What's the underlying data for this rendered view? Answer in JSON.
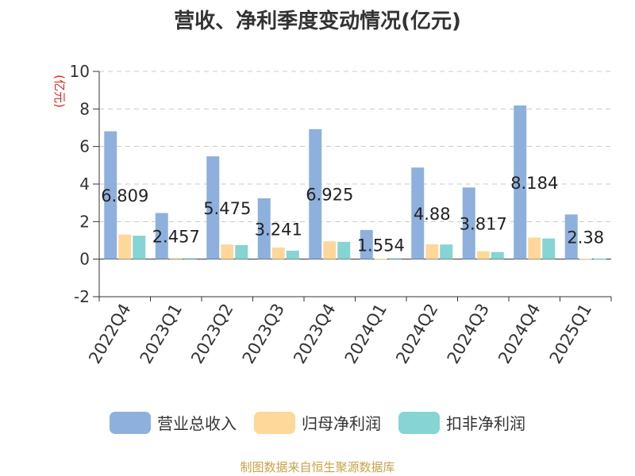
{
  "chart_data": {
    "type": "bar",
    "title": "营收、净利季度变动情况(亿元)",
    "ylabel": "(亿元)",
    "ylim": [
      -2,
      10
    ],
    "yticks": [
      -2,
      0,
      2,
      4,
      6,
      8,
      10
    ],
    "grid": true,
    "legend_position": "bottom",
    "categories": [
      "2022Q4",
      "2023Q1",
      "2023Q2",
      "2023Q3",
      "2023Q4",
      "2024Q1",
      "2024Q2",
      "2024Q3",
      "2024Q4",
      "2025Q1"
    ],
    "series": [
      {
        "name": "营业总收入",
        "color": "#8eb0dd",
        "values": [
          6.809,
          2.457,
          5.475,
          3.241,
          6.925,
          1.554,
          4.88,
          3.817,
          8.184,
          2.38
        ],
        "labels": [
          "6.809",
          "2.457",
          "5.475",
          "3.241",
          "6.925",
          "1.554",
          "4.88",
          "3.817",
          "8.184",
          "2.38"
        ]
      },
      {
        "name": "归母净利润",
        "color": "#fdd89a",
        "values": [
          1.31,
          0.05,
          0.78,
          0.62,
          0.95,
          0.03,
          0.79,
          0.42,
          1.15,
          0.03
        ]
      },
      {
        "name": "扣非净利润",
        "color": "#86d4d4",
        "values": [
          1.25,
          0.05,
          0.75,
          0.45,
          0.92,
          0.05,
          0.78,
          0.38,
          1.1,
          0.02
        ]
      }
    ]
  },
  "source": "制图数据来自恒生聚源数据库"
}
